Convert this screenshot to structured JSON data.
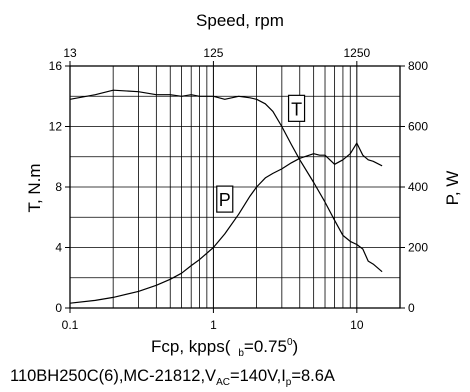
{
  "chart_data": {
    "type": "line",
    "title": "Speed, rpm",
    "x_axis": {
      "label": "Fcp, kpps(",
      "label_suffix": "b",
      "label_value": "=0.75",
      "label_sup": "0",
      "label_close": ")",
      "scale": "log",
      "range": [
        0.1,
        20
      ],
      "ticks": [
        0.1,
        1,
        10
      ],
      "tick_labels": [
        "0.1",
        "1",
        "10"
      ]
    },
    "x2_axis": {
      "label": "Speed, rpm",
      "tick_values_kpps": [
        0.1,
        1,
        10
      ],
      "tick_labels": [
        "13",
        "125",
        "1250"
      ]
    },
    "y_left": {
      "label": "T, N.m",
      "range": [
        0,
        16
      ],
      "ticks": [
        0,
        4,
        8,
        12,
        16
      ],
      "tick_labels": [
        "0",
        "4",
        "8",
        "12",
        "16"
      ]
    },
    "y_right": {
      "label": "P, W",
      "range": [
        0,
        800
      ],
      "ticks": [
        0,
        200,
        400,
        600,
        800
      ],
      "tick_labels": [
        "0",
        "200",
        "400",
        "600",
        "800"
      ]
    },
    "grid": true,
    "series": [
      {
        "name": "T",
        "axis": "left",
        "x": [
          0.1,
          0.15,
          0.2,
          0.3,
          0.4,
          0.5,
          0.6,
          0.7,
          0.8,
          1.0,
          1.2,
          1.5,
          1.8,
          2.0,
          2.3,
          2.6,
          3.0,
          3.5,
          4.0,
          5.0,
          6.0,
          7.0,
          8.0,
          9.0,
          10.0,
          11.0,
          12.0,
          13.0,
          15.0
        ],
        "y": [
          13.8,
          14.1,
          14.4,
          14.3,
          14.1,
          14.1,
          14.0,
          14.1,
          14.0,
          14.0,
          13.8,
          14.0,
          13.9,
          13.8,
          13.5,
          13.0,
          12.0,
          10.8,
          9.8,
          8.3,
          7.0,
          5.8,
          4.8,
          4.4,
          4.2,
          3.9,
          3.1,
          2.9,
          2.4
        ]
      },
      {
        "name": "P",
        "axis": "right",
        "x": [
          0.1,
          0.15,
          0.2,
          0.3,
          0.4,
          0.5,
          0.6,
          0.7,
          0.8,
          1.0,
          1.2,
          1.5,
          1.8,
          2.0,
          2.3,
          2.6,
          3.0,
          3.5,
          4.0,
          5.0,
          5.5,
          6.0,
          7.0,
          8.0,
          9.0,
          10.0,
          11.0,
          12.0,
          13.0,
          15.0
        ],
        "y": [
          16,
          25,
          35,
          55,
          75,
          95,
          115,
          140,
          160,
          200,
          245,
          310,
          370,
          400,
          430,
          445,
          460,
          480,
          495,
          510,
          505,
          505,
          475,
          490,
          510,
          545,
          505,
          490,
          485,
          470
        ]
      }
    ],
    "curve_labels": [
      {
        "text": "T",
        "x": 3.8,
        "y_left": 13.2
      },
      {
        "text": "P",
        "x": 1.2,
        "y_left": 7.2
      }
    ],
    "caption": {
      "main": "110BH250C(6),MC-21812,V",
      "v_sub": "AC",
      "v_value": "=140V,I",
      "i_sub": "p",
      "i_value": "=8.6A"
    }
  }
}
